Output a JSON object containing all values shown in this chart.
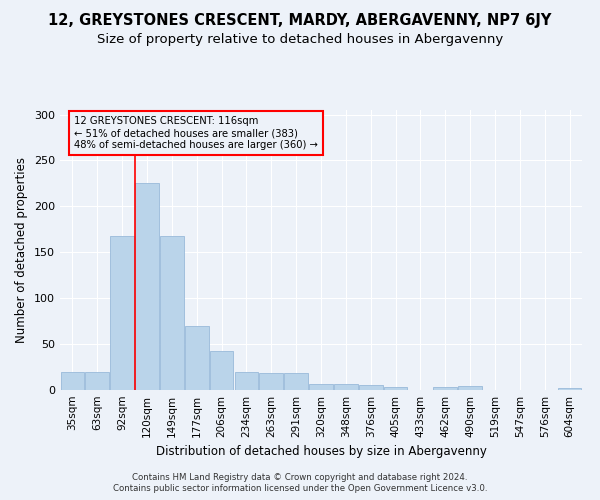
{
  "title": "12, GREYSTONES CRESCENT, MARDY, ABERGAVENNY, NP7 6JY",
  "subtitle": "Size of property relative to detached houses in Abergavenny",
  "xlabel": "Distribution of detached houses by size in Abergavenny",
  "ylabel": "Number of detached properties",
  "categories": [
    "35sqm",
    "63sqm",
    "92sqm",
    "120sqm",
    "149sqm",
    "177sqm",
    "206sqm",
    "234sqm",
    "263sqm",
    "291sqm",
    "320sqm",
    "348sqm",
    "376sqm",
    "405sqm",
    "433sqm",
    "462sqm",
    "490sqm",
    "519sqm",
    "547sqm",
    "576sqm",
    "604sqm"
  ],
  "values": [
    20,
    20,
    168,
    226,
    168,
    70,
    43,
    20,
    18,
    18,
    7,
    6,
    5,
    3,
    0,
    3,
    4,
    0,
    0,
    0,
    2
  ],
  "bar_color": "#bad4ea",
  "bar_edgecolor": "#99bada",
  "annotation_text": "12 GREYSTONES CRESCENT: 116sqm\n← 51% of detached houses are smaller (383)\n48% of semi-detached houses are larger (360) →",
  "annotation_box_edgecolor": "red",
  "redline_color": "red",
  "footer1": "Contains HM Land Registry data © Crown copyright and database right 2024.",
  "footer2": "Contains public sector information licensed under the Open Government Licence v3.0.",
  "ylim": [
    0,
    305
  ],
  "yticks": [
    0,
    50,
    100,
    150,
    200,
    250,
    300
  ],
  "background_color": "#edf2f9",
  "grid_color": "white",
  "title_fontsize": 10.5,
  "subtitle_fontsize": 9.5,
  "axis_label_fontsize": 8.5,
  "tick_fontsize": 7.5,
  "footer_fontsize": 6.2
}
